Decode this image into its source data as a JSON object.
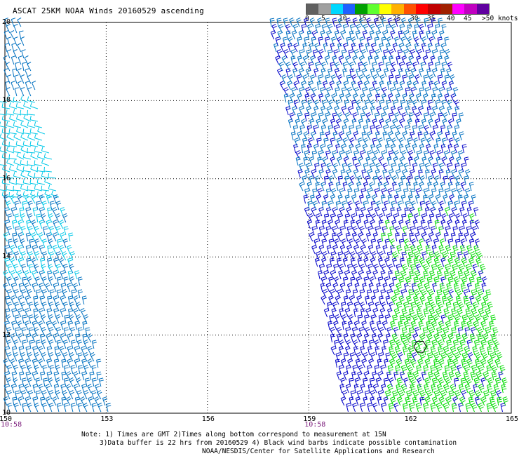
{
  "title": "ASCAT 25KM NOAA Winds 20160529 ascending",
  "legend": {
    "colors": [
      "#606060",
      "#a0a0a0",
      "#00d8ff",
      "#2060ff",
      "#00a000",
      "#60ff30",
      "#ffff00",
      "#ffb000",
      "#ff5000",
      "#ff0000",
      "#c00000",
      "#a02000",
      "#ff00ff",
      "#c000c0",
      "#6000a0"
    ],
    "labels": [
      "0",
      "5",
      "10",
      "15",
      "20",
      "25",
      "30",
      "35",
      "40",
      "45",
      ">50 knots"
    ]
  },
  "map": {
    "lon_range": [
      150,
      165
    ],
    "lat_range": [
      10,
      20
    ],
    "lon_ticks": [
      "150",
      "153",
      "156",
      "159",
      "162",
      "165"
    ],
    "lat_ticks": [
      "20",
      "18",
      "16",
      "14",
      "12",
      "10"
    ],
    "time_labels": [
      {
        "text": "10:58",
        "lon": 150
      },
      {
        "text": "10:58",
        "lon": 159
      }
    ],
    "grid": true,
    "barb_colors": {
      "light": "#00c8e8",
      "medium": "#0070c0",
      "dark": "#0000c8",
      "green": "#00dc00"
    },
    "contamination_marker": {
      "lon": 162.3,
      "lat": 11.7
    }
  },
  "notes": {
    "line1": "Note: 1) Times are GMT 2)Times along bottom correspond to measurement at 15N",
    "line2": "3)Data buffer is 22 hrs from 20160529 4) Black wind barbs indicate possible contamination",
    "line3": "NOAA/NESDIS/Center for Satellite Applications and Research"
  }
}
